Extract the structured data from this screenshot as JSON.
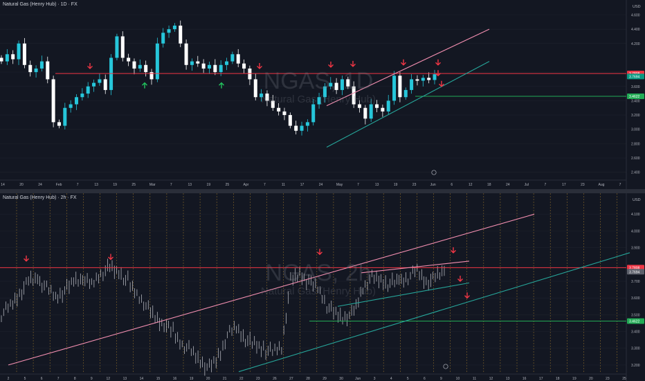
{
  "colors": {
    "background": "#131722",
    "up": "#26c6da",
    "down": "#ffffff",
    "resistance": "#f23645",
    "support": "#22ab55",
    "channel_upper": "#f48fb1",
    "channel_lower": "#26a69a",
    "arrow_down": "#f23645",
    "arrow_up": "#22c55e"
  },
  "top_pane": {
    "title": "Natural Gas (Henry Hub) · 1D · FX",
    "watermark": "NGAS, 1D",
    "watermark_sub": "Natural Gas (Henry Hub)",
    "currency": "USD",
    "price_ticks": [
      "4.600",
      "4.400",
      "4.200",
      "3.800",
      "3.600",
      "3.400",
      "3.200",
      "3.000",
      "2.800",
      "2.600",
      "2.400"
    ],
    "badge_resistance": "3.7808",
    "badge_price": "3.7694",
    "badge_support": "3.4622",
    "date_labels": [
      "14",
      "20",
      "24",
      "Feb",
      "7",
      "13",
      "19",
      "25",
      "Mar",
      "7",
      "13",
      "19",
      "25",
      "Apr",
      "7",
      "11",
      "17",
      "24",
      "May",
      "7",
      "13",
      "19",
      "23",
      "Jun",
      "6",
      "12",
      "18",
      "24",
      "Jul",
      "7",
      "17",
      "23",
      "Aug",
      "7"
    ]
  },
  "bottom_pane": {
    "title": "Natural Gas (Henry Hub) · 2h · FX",
    "watermark": "NGAS, 2h",
    "watermark_sub": "Natural Gas (Henry Hub)",
    "currency": "USD",
    "price_ticks": [
      "4.100",
      "4.000",
      "3.900",
      "3.700",
      "3.600",
      "3.500",
      "3.400",
      "3.300",
      "3.200"
    ],
    "badge_resistance": "3.7808",
    "badge_price": "3.7694",
    "badge_support": "3.4622",
    "date_labels": [
      "2",
      "5",
      "6",
      "7",
      "8",
      "9",
      "12",
      "13",
      "14",
      "15",
      "16",
      "19",
      "20",
      "21",
      "22",
      "23",
      "26",
      "27",
      "28",
      "29",
      "30",
      "Jun",
      "3",
      "4",
      "5",
      "6",
      "9",
      "10",
      "11",
      "12",
      "13",
      "16",
      "17",
      "18",
      "19",
      "20",
      "23",
      "25"
    ]
  },
  "chart_data": [
    {
      "type": "candlestick",
      "title": "Natural Gas (Henry Hub) · 1D · FX",
      "ylabel": "USD",
      "ylim": [
        2.3,
        4.75
      ],
      "levels": {
        "resistance": 3.7808,
        "support": 3.4622,
        "last": 3.7694
      },
      "close_path_approx": [
        3.95,
        4.05,
        3.98,
        4.2,
        3.9,
        3.8,
        3.85,
        3.95,
        3.7,
        3.1,
        3.05,
        3.3,
        3.35,
        3.45,
        3.5,
        3.6,
        3.65,
        3.7,
        3.55,
        4.0,
        4.3,
        4.0,
        3.95,
        3.85,
        3.9,
        3.8,
        3.7,
        4.2,
        4.35,
        4.4,
        4.45,
        4.2,
        3.9,
        3.95,
        3.92,
        3.85,
        3.9,
        3.8,
        3.9,
        3.95,
        4.05,
        3.92,
        3.85,
        3.7,
        3.45,
        3.5,
        3.4,
        3.3,
        3.25,
        3.2,
        3.05,
        2.98,
        3.05,
        3.1,
        3.35,
        3.45,
        3.6,
        3.65,
        3.55,
        3.7,
        3.6,
        3.35,
        3.3,
        3.15,
        3.35,
        3.3,
        3.25,
        3.4,
        3.75,
        3.45,
        3.55,
        3.7,
        3.68,
        3.72,
        3.69,
        3.77
      ],
      "annotations": {
        "arrow_down_count": 8,
        "arrow_up_count": 2
      }
    },
    {
      "type": "ohlc",
      "title": "Natural Gas (Henry Hub) · 2h · FX",
      "ylabel": "USD",
      "ylim": [
        3.15,
        4.2
      ],
      "levels": {
        "resistance": 3.7808,
        "support": 3.4622,
        "last": 3.7694
      },
      "close_path_approx": [
        3.5,
        3.55,
        3.62,
        3.7,
        3.72,
        3.66,
        3.6,
        3.64,
        3.7,
        3.72,
        3.68,
        3.74,
        3.78,
        3.75,
        3.7,
        3.62,
        3.55,
        3.48,
        3.44,
        3.4,
        3.32,
        3.28,
        3.22,
        3.18,
        3.25,
        3.38,
        3.42,
        3.35,
        3.32,
        3.3,
        3.28,
        3.3,
        3.7,
        3.74,
        3.7,
        3.66,
        3.55,
        3.5,
        3.48,
        3.52,
        3.66,
        3.72,
        3.7,
        3.68,
        3.71,
        3.72,
        3.76,
        3.69,
        3.72,
        3.77
      ],
      "annotations": {
        "arrow_down_count": 6
      }
    }
  ]
}
